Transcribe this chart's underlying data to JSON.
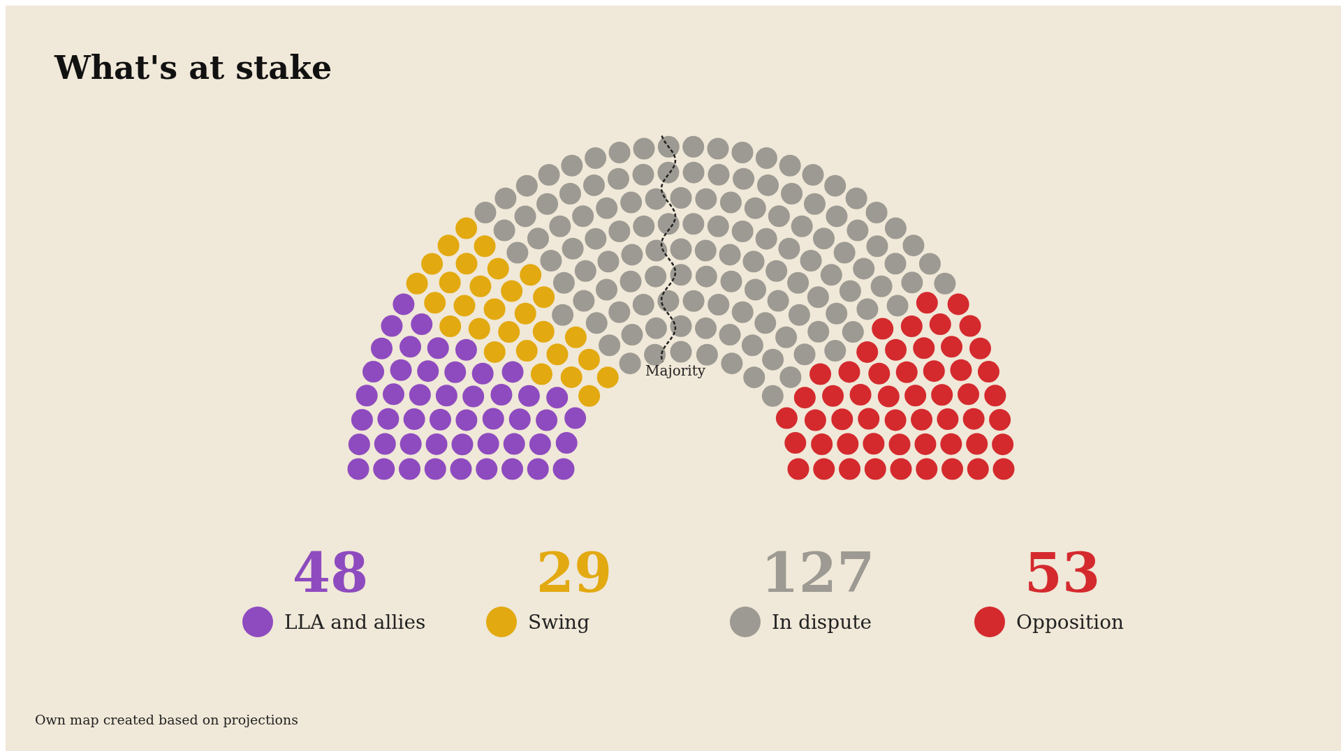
{
  "chart_data": {
    "type": "other",
    "title": "What's at stake",
    "categories": [
      "LLA and allies",
      "Swing",
      "In dispute",
      "Opposition"
    ],
    "values": [
      48,
      29,
      127,
      53
    ],
    "data_labels": true,
    "colors": [
      "#8e4bbf",
      "#e2a910",
      "#9c9a92",
      "#d42a2e"
    ],
    "annotations": [
      "Majority",
      "Own map created based on projections"
    ]
  }
}
